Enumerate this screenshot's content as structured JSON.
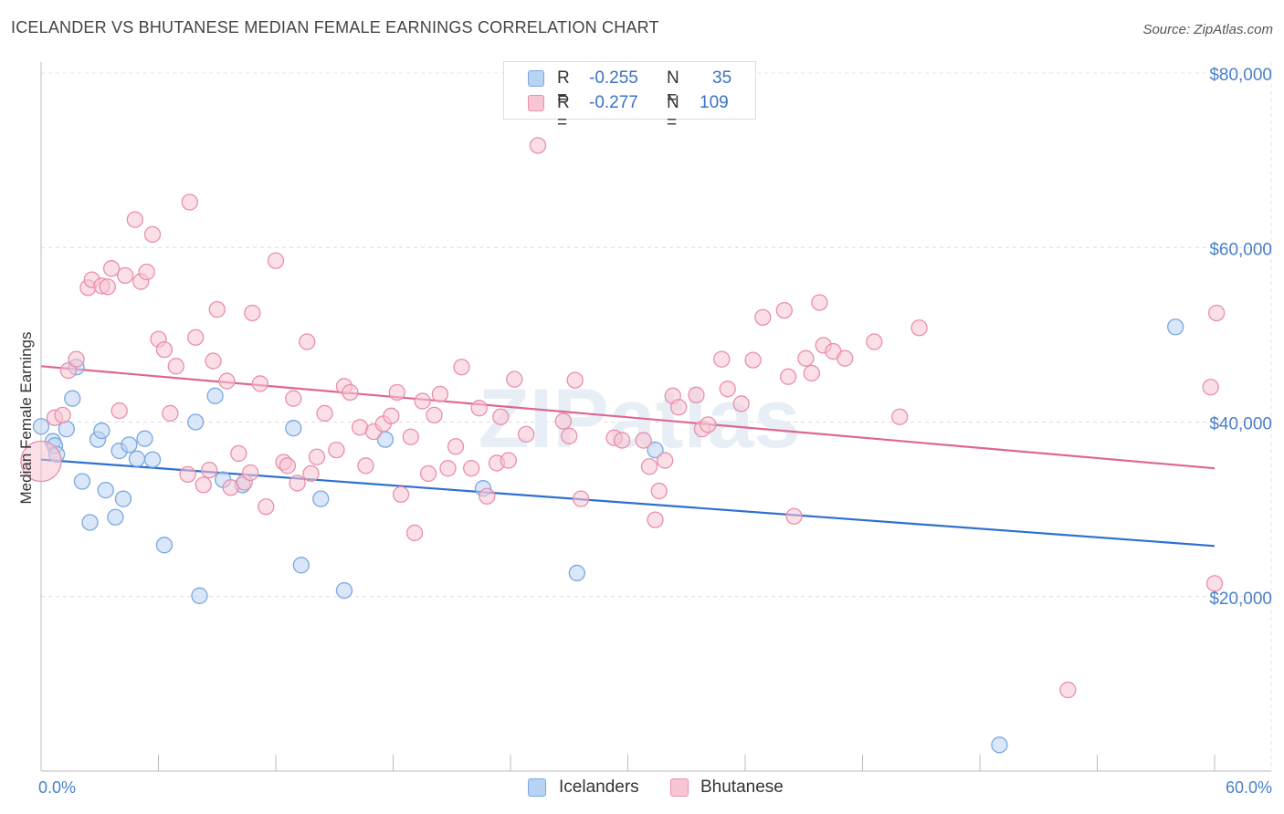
{
  "title": "ICELANDER VS BHUTANESE MEDIAN FEMALE EARNINGS CORRELATION CHART",
  "source": "Source: ZipAtlas.com",
  "watermark": "ZIPatlas",
  "legend": {
    "rows": [
      {
        "r_label": "R =",
        "r_value": "-0.255",
        "n_label": "N =",
        "n_value": "35"
      },
      {
        "r_label": "R =",
        "r_value": "-0.277",
        "n_label": "N =",
        "n_value": "109"
      }
    ]
  },
  "bottom_legend": [
    "Icelanders",
    "Bhutanese"
  ],
  "colors": {
    "icelanders_fill": "#b9d3f3",
    "icelanders_stroke": "#7aa8e0",
    "icelanders_line": "#2f6fd0",
    "bhutanese_fill": "#f8c5d4",
    "bhutanese_stroke": "#e98fab",
    "bhutanese_line": "#e0668f",
    "tick_text": "#4a80c8"
  },
  "chart_data": {
    "type": "scatter",
    "title": "ICELANDER VS BHUTANESE MEDIAN FEMALE EARNINGS CORRELATION CHART",
    "xlabel": "",
    "ylabel": "Median Female Earnings",
    "xlim": [
      0,
      60
    ],
    "ylim": [
      0,
      82000
    ],
    "x_tick_labels": [
      "0.0%",
      "60.0%"
    ],
    "y_ticks": [
      20000,
      40000,
      60000,
      80000
    ],
    "y_tick_labels": [
      "$20,000",
      "$40,000",
      "$60,000",
      "$80,000"
    ],
    "series": [
      {
        "name": "Icelanders",
        "r": -0.255,
        "n": 35,
        "trend": {
          "x0": 0,
          "y0": 35700,
          "x1": 60,
          "y1": 25800
        },
        "points": [
          [
            0.0,
            39500
          ],
          [
            0.6,
            37800
          ],
          [
            0.7,
            37300
          ],
          [
            0.8,
            36300
          ],
          [
            1.3,
            39200
          ],
          [
            1.6,
            42700
          ],
          [
            1.8,
            46300
          ],
          [
            2.1,
            33200
          ],
          [
            2.5,
            28500
          ],
          [
            2.9,
            38000
          ],
          [
            3.1,
            39000
          ],
          [
            3.3,
            32200
          ],
          [
            3.8,
            29100
          ],
          [
            4.0,
            36700
          ],
          [
            4.2,
            31200
          ],
          [
            4.5,
            37400
          ],
          [
            4.9,
            35800
          ],
          [
            5.3,
            38100
          ],
          [
            5.7,
            35700
          ],
          [
            6.3,
            25900
          ],
          [
            7.9,
            40000
          ],
          [
            8.1,
            20100
          ],
          [
            8.9,
            43000
          ],
          [
            9.3,
            33400
          ],
          [
            10.3,
            32800
          ],
          [
            12.9,
            39300
          ],
          [
            13.3,
            23600
          ],
          [
            14.3,
            31200
          ],
          [
            15.5,
            20700
          ],
          [
            17.6,
            38000
          ],
          [
            22.6,
            32400
          ],
          [
            27.4,
            22700
          ],
          [
            31.4,
            36800
          ],
          [
            49.0,
            3000
          ],
          [
            58.0,
            50900
          ]
        ]
      },
      {
        "name": "Bhutanese",
        "r": -0.277,
        "n": 109,
        "trend": {
          "x0": 0,
          "y0": 46400,
          "x1": 60,
          "y1": 34700
        },
        "points": [
          [
            0.0,
            35500
          ],
          [
            0.7,
            40500
          ],
          [
            1.1,
            40800
          ],
          [
            1.4,
            45900
          ],
          [
            1.8,
            47200
          ],
          [
            2.4,
            55400
          ],
          [
            2.6,
            56300
          ],
          [
            3.1,
            55600
          ],
          [
            3.4,
            55500
          ],
          [
            3.6,
            57600
          ],
          [
            4.0,
            41300
          ],
          [
            4.3,
            56800
          ],
          [
            4.8,
            63200
          ],
          [
            5.1,
            56100
          ],
          [
            5.4,
            57200
          ],
          [
            5.7,
            61500
          ],
          [
            6.0,
            49500
          ],
          [
            6.3,
            48300
          ],
          [
            6.6,
            41000
          ],
          [
            6.9,
            46400
          ],
          [
            7.5,
            34000
          ],
          [
            7.6,
            65200
          ],
          [
            7.9,
            49700
          ],
          [
            8.3,
            32800
          ],
          [
            8.6,
            34500
          ],
          [
            8.8,
            47000
          ],
          [
            9.0,
            52900
          ],
          [
            9.5,
            44700
          ],
          [
            9.7,
            32500
          ],
          [
            10.1,
            36400
          ],
          [
            10.4,
            33100
          ],
          [
            10.7,
            34200
          ],
          [
            10.8,
            52500
          ],
          [
            11.2,
            44400
          ],
          [
            11.5,
            30300
          ],
          [
            12.0,
            58500
          ],
          [
            12.4,
            35400
          ],
          [
            12.6,
            35000
          ],
          [
            12.9,
            42700
          ],
          [
            13.1,
            33000
          ],
          [
            13.6,
            49200
          ],
          [
            13.8,
            34100
          ],
          [
            14.1,
            36000
          ],
          [
            14.5,
            41000
          ],
          [
            15.1,
            36800
          ],
          [
            15.5,
            44100
          ],
          [
            15.8,
            43400
          ],
          [
            16.3,
            39400
          ],
          [
            16.6,
            35000
          ],
          [
            17.0,
            38900
          ],
          [
            17.5,
            39800
          ],
          [
            17.9,
            40700
          ],
          [
            18.2,
            43400
          ],
          [
            18.4,
            31700
          ],
          [
            18.9,
            38300
          ],
          [
            19.1,
            27300
          ],
          [
            19.5,
            42400
          ],
          [
            19.8,
            34100
          ],
          [
            20.1,
            40800
          ],
          [
            20.4,
            43200
          ],
          [
            20.8,
            34700
          ],
          [
            21.2,
            37200
          ],
          [
            21.5,
            46300
          ],
          [
            22.0,
            34700
          ],
          [
            22.4,
            41600
          ],
          [
            22.8,
            31500
          ],
          [
            23.3,
            35300
          ],
          [
            23.5,
            40600
          ],
          [
            23.9,
            35600
          ],
          [
            24.2,
            44900
          ],
          [
            24.8,
            38600
          ],
          [
            25.4,
            71700
          ],
          [
            26.7,
            40100
          ],
          [
            27.0,
            38400
          ],
          [
            27.3,
            44800
          ],
          [
            27.6,
            31200
          ],
          [
            29.3,
            38200
          ],
          [
            29.7,
            37900
          ],
          [
            30.8,
            37900
          ],
          [
            31.1,
            34900
          ],
          [
            31.4,
            28800
          ],
          [
            31.6,
            32100
          ],
          [
            31.9,
            35600
          ],
          [
            32.3,
            43000
          ],
          [
            32.6,
            41700
          ],
          [
            33.5,
            43100
          ],
          [
            33.8,
            39200
          ],
          [
            34.1,
            39700
          ],
          [
            34.8,
            47200
          ],
          [
            35.1,
            43800
          ],
          [
            35.8,
            42100
          ],
          [
            36.4,
            47100
          ],
          [
            36.9,
            52000
          ],
          [
            38.0,
            52800
          ],
          [
            38.2,
            45200
          ],
          [
            38.5,
            29200
          ],
          [
            39.1,
            47300
          ],
          [
            39.4,
            45600
          ],
          [
            39.8,
            53700
          ],
          [
            40.0,
            48800
          ],
          [
            40.5,
            48100
          ],
          [
            41.1,
            47300
          ],
          [
            42.6,
            49200
          ],
          [
            43.9,
            40600
          ],
          [
            44.9,
            50800
          ],
          [
            52.5,
            9300
          ],
          [
            60.0,
            21500
          ],
          [
            60.1,
            52500
          ],
          [
            59.8,
            44000
          ]
        ]
      }
    ]
  }
}
